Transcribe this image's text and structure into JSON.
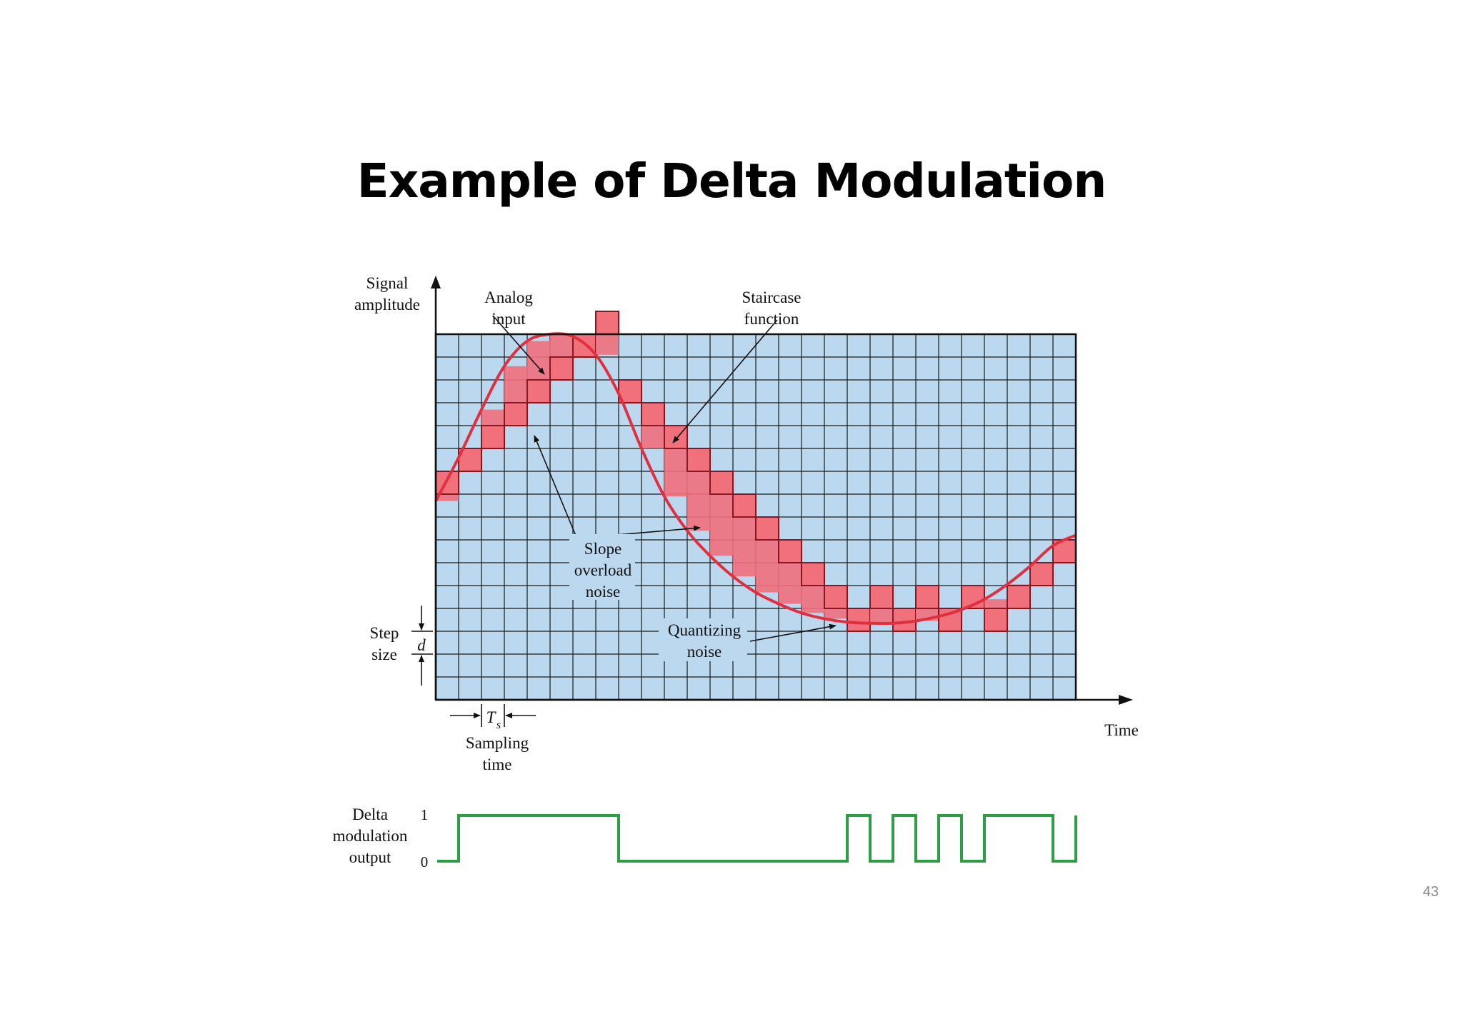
{
  "slide": {
    "title": "Example of Delta Modulation",
    "page_number": "43"
  },
  "labels": {
    "y_axis_line1": "Signal",
    "y_axis_line2": "amplitude",
    "analog_line1": "Analog",
    "analog_line2": "input",
    "staircase_line1": "Staircase",
    "staircase_line2": "function",
    "slope_line1": "Slope",
    "slope_line2": "overload",
    "slope_line3": "noise",
    "quant_line1": "Quantizing",
    "quant_line2": "noise",
    "step_line1": "Step",
    "step_line2": "size",
    "step_symbol": "d",
    "ts_main": "T",
    "ts_sub": "s",
    "sampling_line1": "Sampling",
    "sampling_line2": "time",
    "time_axis": "Time",
    "delta_line1": "Delta",
    "delta_line2": "modulation",
    "delta_line3": "output",
    "level_one": "1",
    "level_zero": "0"
  },
  "colors": {
    "grid_fill": "#bcd8ef",
    "signal": "#e0303f",
    "noise_fill": "#f0707c",
    "output": "#2e9e45"
  },
  "diagram_data": {
    "staircase_levels": [
      9,
      10,
      11,
      12,
      13,
      14,
      15,
      16,
      13,
      12,
      11,
      10,
      9,
      8,
      7,
      6,
      5,
      4,
      3,
      4,
      3,
      4,
      3,
      4,
      3,
      4,
      5,
      6
    ],
    "output_bits": [
      1,
      1,
      1,
      1,
      1,
      1,
      1,
      0,
      0,
      0,
      0,
      0,
      0,
      0,
      0,
      0,
      0,
      1,
      0,
      1,
      0,
      1,
      0,
      1,
      1,
      1,
      0
    ],
    "grid_columns": 28,
    "grid_rows": 16
  }
}
